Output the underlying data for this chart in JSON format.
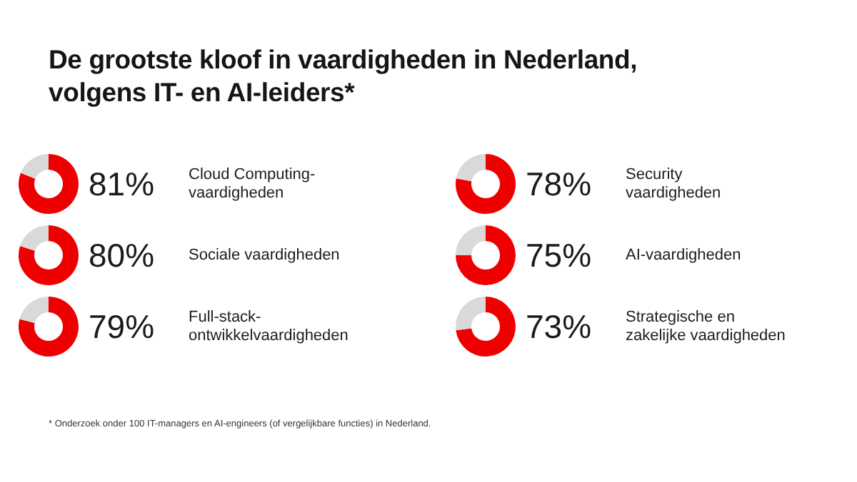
{
  "chart_data": [
    {
      "type": "other",
      "title": "De grootste kloof in vaardigheden in Nederland,\nvolgens IT- en AI-leiders*",
      "annotations": [
        "* Onderzoek onder 100 IT-managers en AI-engineers (of vergelijkbare functies) in Nederland."
      ]
    },
    {
      "type": "donut",
      "title": "Cloud Computing-\nvaardigheden",
      "categories": [
        null,
        null
      ],
      "values": [
        81,
        19
      ],
      "colors": [
        "#ee0000",
        "#d9d9d9"
      ],
      "value_labels": [
        "81%",
        null
      ]
    },
    {
      "type": "donut",
      "title": "Sociale vaardigheden",
      "categories": [
        null,
        null
      ],
      "values": [
        80,
        20
      ],
      "colors": [
        "#ee0000",
        "#d9d9d9"
      ],
      "value_labels": [
        "80%",
        null
      ]
    },
    {
      "type": "donut",
      "title": "Full-stack-\nontwikkelvaardigheden",
      "categories": [
        null,
        null
      ],
      "values": [
        79,
        21
      ],
      "colors": [
        "#ee0000",
        "#d9d9d9"
      ],
      "value_labels": [
        "79%",
        null
      ]
    },
    {
      "type": "donut",
      "title": "Security\nvaardigheden",
      "categories": [
        null,
        null
      ],
      "values": [
        78,
        22
      ],
      "colors": [
        "#ee0000",
        "#d9d9d9"
      ],
      "value_labels": [
        "78%",
        null
      ]
    },
    {
      "type": "donut",
      "title": "AI-vaardigheden",
      "categories": [
        null,
        null
      ],
      "values": [
        75,
        25
      ],
      "colors": [
        "#ee0000",
        "#d9d9d9"
      ],
      "value_labels": [
        "75%",
        null
      ]
    },
    {
      "type": "donut",
      "title": "Strategische en\nzakelijke vaardigheden",
      "categories": [
        null,
        null
      ],
      "values": [
        73,
        27
      ],
      "colors": [
        "#ee0000",
        "#d9d9d9"
      ],
      "value_labels": [
        "73%",
        null
      ]
    }
  ]
}
